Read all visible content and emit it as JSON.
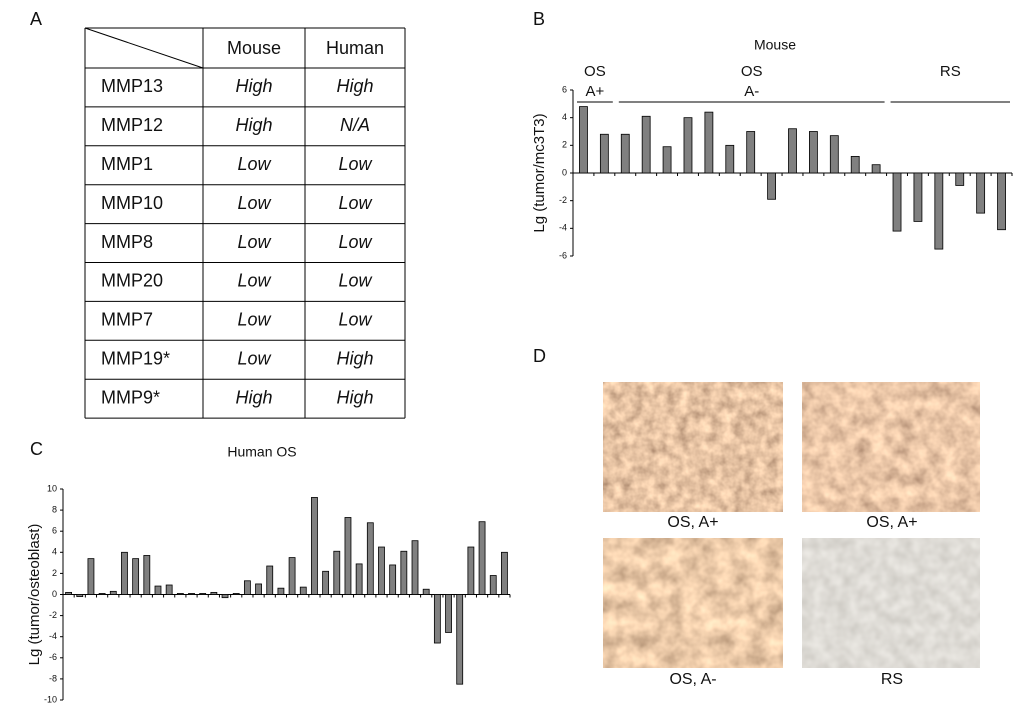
{
  "panel_labels": [
    "A",
    "B",
    "C",
    "D"
  ],
  "table": {
    "header": [
      "Mouse",
      "Human"
    ],
    "rows": [
      [
        "MMP13",
        "High",
        "High"
      ],
      [
        "MMP12",
        "High",
        "N/A"
      ],
      [
        "MMP1",
        "Low",
        "Low"
      ],
      [
        "MMP10",
        "Low",
        "Low"
      ],
      [
        "MMP8",
        "Low",
        "Low"
      ],
      [
        "MMP20",
        "Low",
        "Low"
      ],
      [
        "MMP7",
        "Low",
        "Low"
      ],
      [
        "MMP19*",
        "Low",
        "High"
      ],
      [
        "MMP9*",
        "High",
        "High"
      ]
    ]
  },
  "chart_data": [
    {
      "type": "bar",
      "title": "Mouse",
      "y_label": "Lg (tumor/mc3T3)",
      "color": "#808080",
      "groups": [
        [
          "OS",
          "A+"
        ],
        [
          "OS",
          "A-"
        ],
        [
          "RS"
        ]
      ],
      "values": [
        4.8,
        2.8,
        2.8,
        4.1,
        1.9,
        4.0,
        4.4,
        2.0,
        3.0,
        -1.9,
        3.2,
        3.0,
        2.7,
        1.2,
        0.6,
        -4.2,
        -3.5,
        -5.5,
        -0.9,
        -2.9,
        -4.1
      ],
      "ylim": [
        -6,
        6
      ],
      "yticks": [
        -6,
        -4,
        -2,
        0,
        2,
        4,
        6
      ]
    },
    {
      "type": "bar",
      "title": "Human OS",
      "y_label": "Lg (tumor/osteoblast)",
      "color": "#808080",
      "values": [
        0.2,
        -0.2,
        3.4,
        0.1,
        0.3,
        4.0,
        3.4,
        3.7,
        0.8,
        0.9,
        0.1,
        0.1,
        0.1,
        0.2,
        -0.3,
        0.1,
        1.3,
        1.0,
        2.7,
        0.6,
        3.5,
        0.7,
        9.2,
        2.2,
        4.1,
        7.3,
        2.9,
        6.8,
        4.5,
        2.8,
        4.1,
        5.1,
        0.5,
        -4.6,
        -3.6,
        -8.5,
        4.5,
        6.9,
        1.8,
        4.0
      ],
      "ylim": [
        -10,
        10
      ],
      "yticks": [
        -10,
        -8,
        -6,
        -4,
        -2,
        0,
        2,
        4,
        6,
        8,
        10
      ]
    }
  ],
  "images": [
    {
      "caption": "OS, A+"
    },
    {
      "caption": "OS, A+"
    },
    {
      "caption": "OS, A-"
    },
    {
      "caption": "RS"
    }
  ]
}
